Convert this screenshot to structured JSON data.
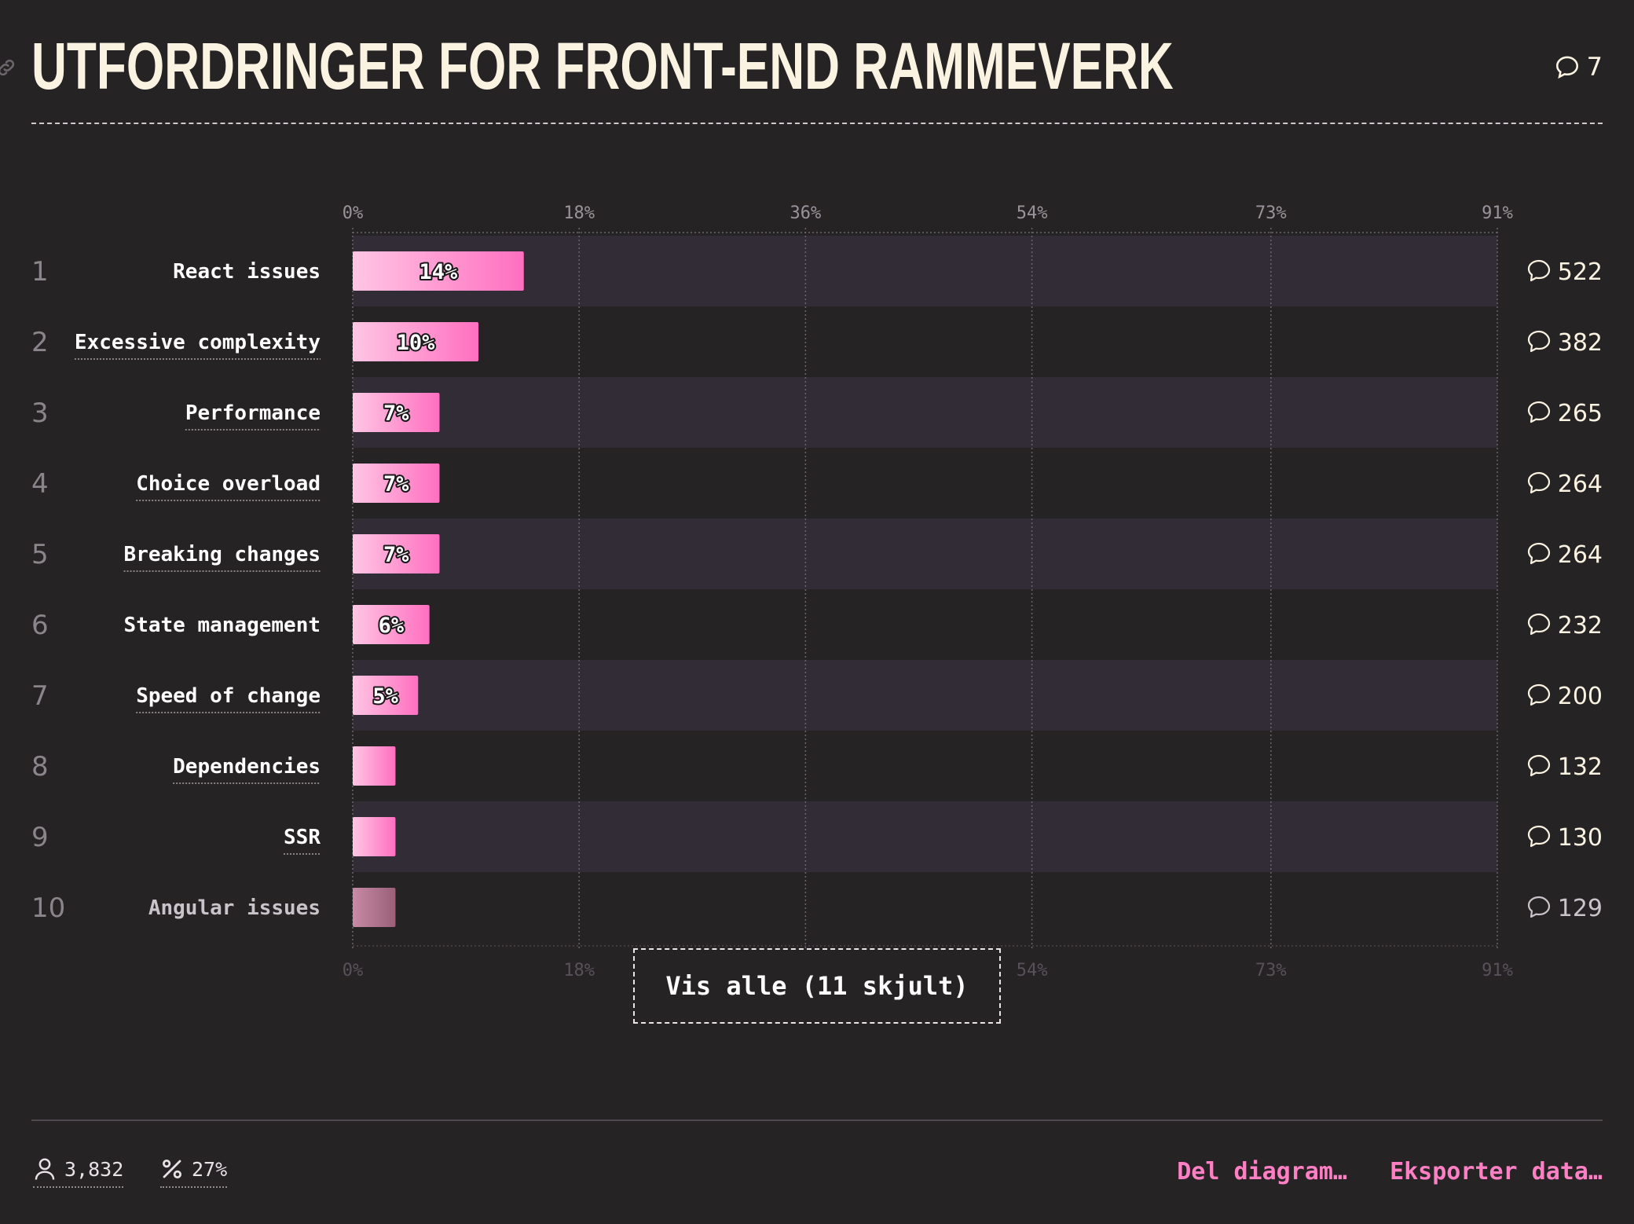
{
  "title": "UTFORDRINGER FOR FRONT-END RAMMEVERK",
  "header_comment_count": "7",
  "chart_data": {
    "type": "bar",
    "orientation": "horizontal",
    "categories": [
      "React issues",
      "Excessive complexity",
      "Performance",
      "Choice overload",
      "Breaking changes",
      "State management",
      "Speed of change",
      "Dependencies",
      "SSR",
      "Angular issues"
    ],
    "ranks": [
      "1",
      "2",
      "3",
      "4",
      "5",
      "6",
      "7",
      "8",
      "9",
      "10"
    ],
    "values": [
      13.6,
      10.0,
      6.9,
      6.9,
      6.9,
      6.1,
      5.2,
      3.4,
      3.4,
      3.4
    ],
    "bar_labels": [
      "14%",
      "10%",
      "7%",
      "7%",
      "7%",
      "6%",
      "5%",
      "",
      "",
      ""
    ],
    "comment_counts": [
      "522",
      "382",
      "265",
      "264",
      "264",
      "232",
      "200",
      "132",
      "130",
      "129"
    ],
    "underlined": [
      false,
      true,
      true,
      true,
      true,
      false,
      true,
      true,
      true,
      false
    ],
    "x_ticks": [
      0,
      18,
      36,
      54,
      73,
      91
    ],
    "x_tick_labels": [
      "0%",
      "18%",
      "36%",
      "54%",
      "73%",
      "91%"
    ],
    "xlim": [
      0,
      91
    ],
    "grid": true,
    "colors": {
      "bar_start": "#ffc6e4",
      "bar_end": "#ff6fc0",
      "bar_faded_start": "#c88aa6",
      "bar_faded_end": "#9a6078",
      "row_band": "#322c37"
    }
  },
  "show_all_label": "Vis alle (11 skjult)",
  "footer": {
    "respondents": "3,832",
    "percentage": "27%",
    "share_label": "Del diagram…",
    "export_label": "Eksporter data…"
  },
  "icons": {
    "link": "link-icon",
    "comment": "comment-bubble-icon",
    "respondents": "user-icon",
    "percentage": "percent-icon"
  }
}
